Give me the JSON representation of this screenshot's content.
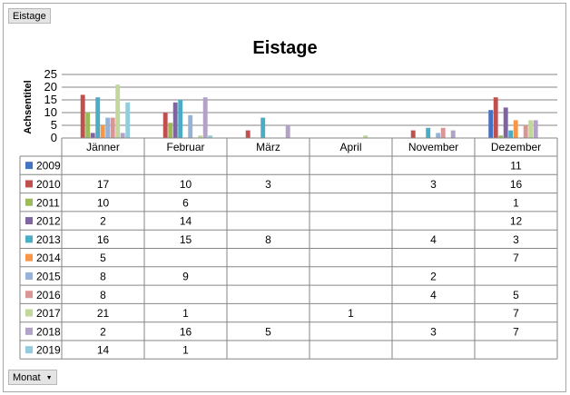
{
  "pivot": {
    "filter_field": "Eistage",
    "axis_field": "Monat",
    "colors": [
      "#4472c4",
      "#c0504d",
      "#9bbb59",
      "#8064a2",
      "#4bacc6",
      "#f79646",
      "#95b3d7",
      "#d99694",
      "#c3d69b",
      "#b3a2c7",
      "#93cddd"
    ]
  },
  "chart_data": {
    "type": "bar",
    "title": "Eistage",
    "ylabel": "Achsentitel",
    "ylim": [
      0,
      25
    ],
    "yticks": [
      0,
      5,
      10,
      15,
      20,
      25
    ],
    "grid": true,
    "legend": "data table",
    "categories": [
      "Jänner",
      "Februar",
      "März",
      "April",
      "November",
      "Dezember"
    ],
    "series": [
      {
        "name": "2009",
        "values": [
          null,
          null,
          null,
          null,
          null,
          11
        ]
      },
      {
        "name": "2010",
        "values": [
          17,
          10,
          3,
          null,
          3,
          16
        ]
      },
      {
        "name": "2011",
        "values": [
          10,
          6,
          null,
          null,
          null,
          1
        ]
      },
      {
        "name": "2012",
        "values": [
          2,
          14,
          null,
          null,
          null,
          12
        ]
      },
      {
        "name": "2013",
        "values": [
          16,
          15,
          8,
          null,
          4,
          3
        ]
      },
      {
        "name": "2014",
        "values": [
          5,
          null,
          null,
          null,
          null,
          7
        ]
      },
      {
        "name": "2015",
        "values": [
          8,
          9,
          null,
          null,
          2,
          null
        ]
      },
      {
        "name": "2016",
        "values": [
          8,
          null,
          null,
          null,
          4,
          5
        ]
      },
      {
        "name": "2017",
        "values": [
          21,
          1,
          null,
          1,
          null,
          7
        ]
      },
      {
        "name": "2018",
        "values": [
          2,
          16,
          5,
          null,
          3,
          7
        ]
      },
      {
        "name": "2019",
        "values": [
          14,
          1,
          null,
          null,
          null,
          null
        ]
      }
    ]
  }
}
